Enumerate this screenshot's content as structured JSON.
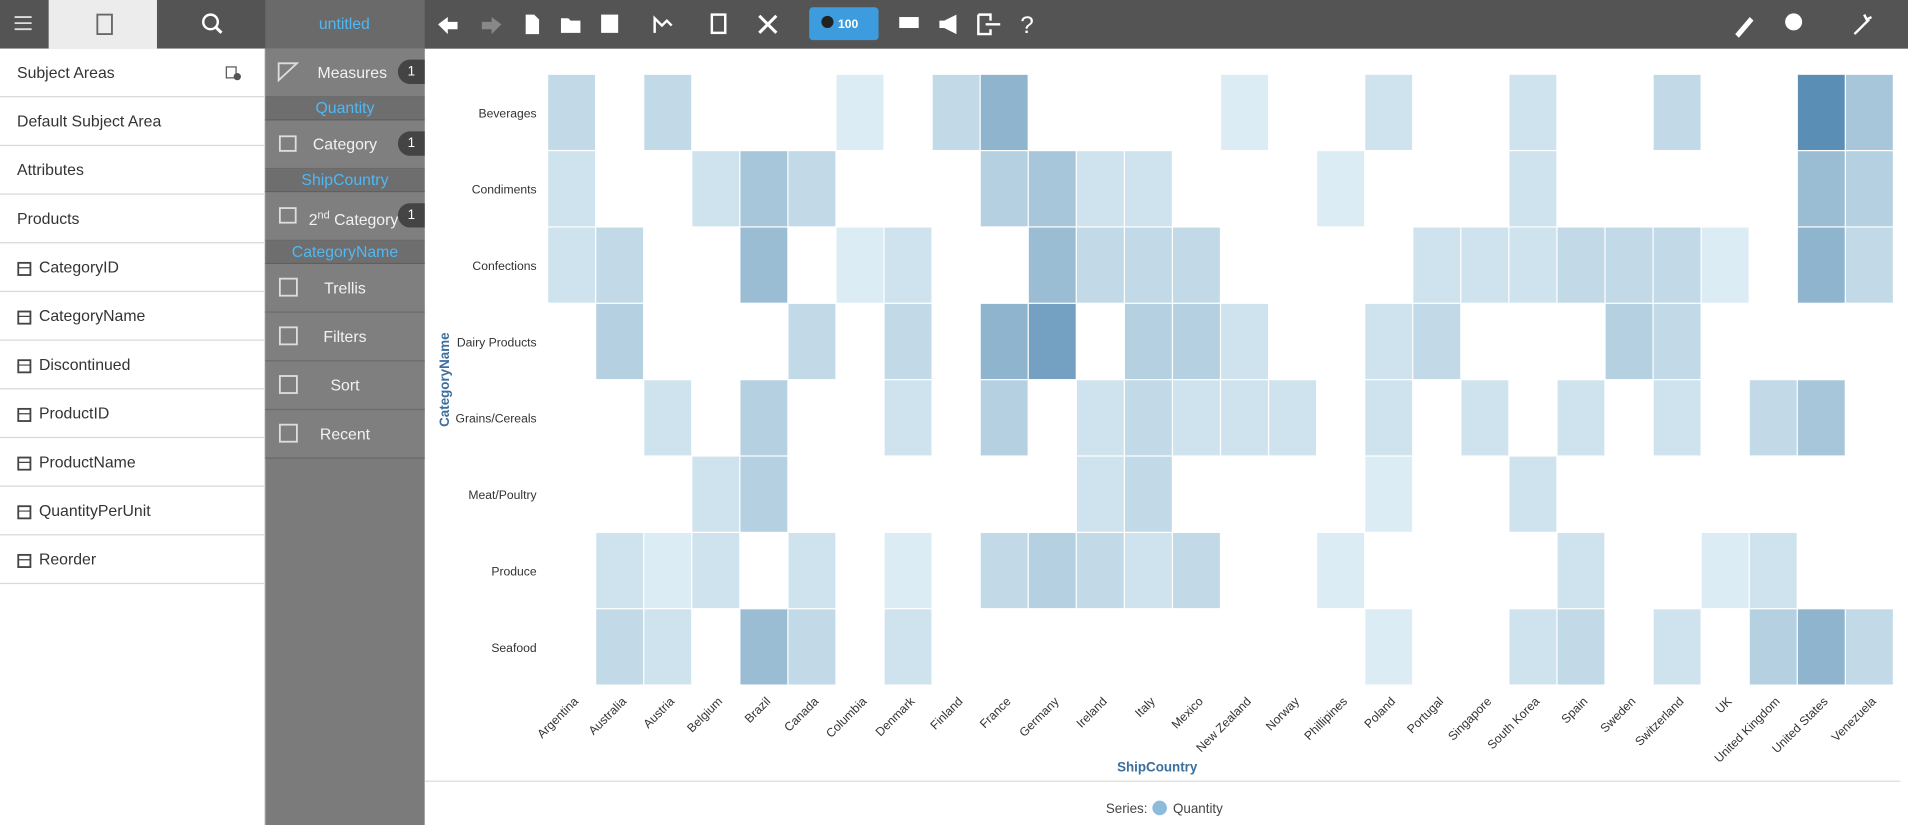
{
  "toolbar": {
    "doc_title": "untitled",
    "zoom": "100"
  },
  "left_panel": {
    "items": [
      "Subject Areas",
      "Default Subject Area",
      "Attributes",
      "Products",
      "CategoryID",
      "CategoryName",
      "Discontinued",
      "ProductID",
      "ProductName",
      "QuantityPerUnit",
      "Reorder"
    ]
  },
  "shelf": {
    "measures": {
      "label": "Measures",
      "count": 1,
      "field": "Quantity"
    },
    "category": {
      "label": "Category",
      "count": 1,
      "field": "ShipCountry"
    },
    "second_category": {
      "number": "2",
      "suffix": "nd",
      "label": "Category",
      "count": 1,
      "field": "CategoryName"
    },
    "buttons": [
      "Trellis",
      "Filters",
      "Sort",
      "Recent"
    ]
  },
  "chart_data": {
    "type": "heatmap",
    "x_label": "ShipCountry",
    "y_label": "CategoryName",
    "legend_title": "Series:",
    "categories": [
      "Argentina",
      "Australia",
      "Austria",
      "Belgium",
      "Brazil",
      "Canada",
      "Columbia",
      "Denmark",
      "Finland",
      "France",
      "Germany",
      "Ireland",
      "Italy",
      "Mexico",
      "New Zealand",
      "Norway",
      "Phillipines",
      "Poland",
      "Portugal",
      "Singapore",
      "South Korea",
      "Spain",
      "Sweden",
      "Switzerland",
      "UK",
      "United Kingdom",
      "United States",
      "Venezuela"
    ],
    "y_categories": [
      "Beverages",
      "Condiments",
      "Confections",
      "Dairy Products",
      "Grains/Cereals",
      "Meat/Poultry",
      "Produce",
      "Seafood"
    ],
    "series": [
      {
        "name": "Quantity",
        "color": "#8dbbdc",
        "values": [
          [
            200,
            null,
            200,
            null,
            null,
            null,
            100,
            null,
            200,
            400,
            null,
            null,
            null,
            null,
            100,
            null,
            null,
            150,
            null,
            null,
            150,
            null,
            null,
            200,
            null,
            null,
            600,
            300
          ],
          [
            150,
            null,
            null,
            150,
            300,
            200,
            null,
            null,
            null,
            250,
            300,
            150,
            150,
            null,
            null,
            null,
            100,
            null,
            null,
            null,
            150,
            null,
            null,
            null,
            null,
            null,
            350,
            250
          ],
          [
            150,
            200,
            null,
            null,
            350,
            null,
            100,
            150,
            null,
            null,
            350,
            200,
            200,
            200,
            null,
            null,
            null,
            null,
            150,
            150,
            150,
            200,
            200,
            200,
            100,
            null,
            400,
            200
          ],
          [
            null,
            250,
            null,
            null,
            null,
            200,
            null,
            200,
            null,
            400,
            500,
            null,
            250,
            250,
            150,
            null,
            null,
            150,
            200,
            null,
            null,
            null,
            250,
            200,
            null,
            null,
            null,
            null
          ],
          [
            null,
            null,
            150,
            null,
            250,
            null,
            null,
            150,
            null,
            250,
            null,
            150,
            200,
            150,
            150,
            150,
            null,
            150,
            null,
            150,
            null,
            150,
            null,
            150,
            null,
            200,
            300,
            null
          ],
          [
            null,
            null,
            null,
            150,
            250,
            null,
            null,
            null,
            null,
            null,
            null,
            150,
            200,
            null,
            null,
            null,
            null,
            100,
            null,
            null,
            150,
            null,
            null,
            null,
            null,
            null,
            null,
            null
          ],
          [
            null,
            150,
            100,
            150,
            null,
            150,
            null,
            100,
            null,
            200,
            250,
            200,
            150,
            200,
            null,
            null,
            100,
            null,
            null,
            null,
            null,
            150,
            null,
            null,
            100,
            150,
            null,
            null
          ],
          [
            null,
            200,
            150,
            null,
            350,
            200,
            null,
            150,
            null,
            null,
            null,
            null,
            null,
            null,
            null,
            null,
            null,
            100,
            null,
            null,
            150,
            200,
            null,
            150,
            null,
            250,
            400,
            200
          ]
        ]
      }
    ]
  }
}
